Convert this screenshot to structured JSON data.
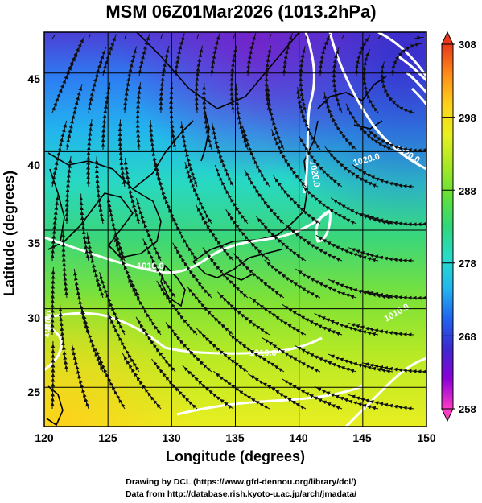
{
  "title": "MSM 06Z01Mar2026 (1013.2hPa)",
  "axes": {
    "x_label": "Longitude (degrees)",
    "y_label": "Latitude  (degrees)",
    "x_ticks": [
      "120",
      "125",
      "130",
      "135",
      "140",
      "145",
      "150"
    ],
    "y_ticks": [
      "25",
      "30",
      "35",
      "40",
      "45"
    ],
    "x_range": [
      120,
      150
    ],
    "y_range": [
      22.5,
      47.6
    ]
  },
  "colorbar": {
    "ticks": [
      "308",
      "298",
      "288",
      "278",
      "268",
      "258"
    ],
    "min": 258,
    "max": 308,
    "colors": [
      "#ff3cc8",
      "#8a00d6",
      "#3c2bd0",
      "#1f66f0",
      "#22b8ee",
      "#27dcc8",
      "#2fd77a",
      "#62e03a",
      "#a8e826",
      "#e7f020",
      "#ffd21a",
      "#ff8c1a",
      "#e8391b"
    ]
  },
  "contour_labels": [
    "1010.0",
    "1020.0",
    "1020.0",
    "1020.0",
    "1010.0",
    "1010.0",
    "1010.0"
  ],
  "credits": {
    "line1": "Drawing by DCL (https://www.gfd-dennou.org/library/dcl/)",
    "line2": "Data from http://database.rish.kyoto-u.ac.jp/arch/jmadata/"
  }
}
